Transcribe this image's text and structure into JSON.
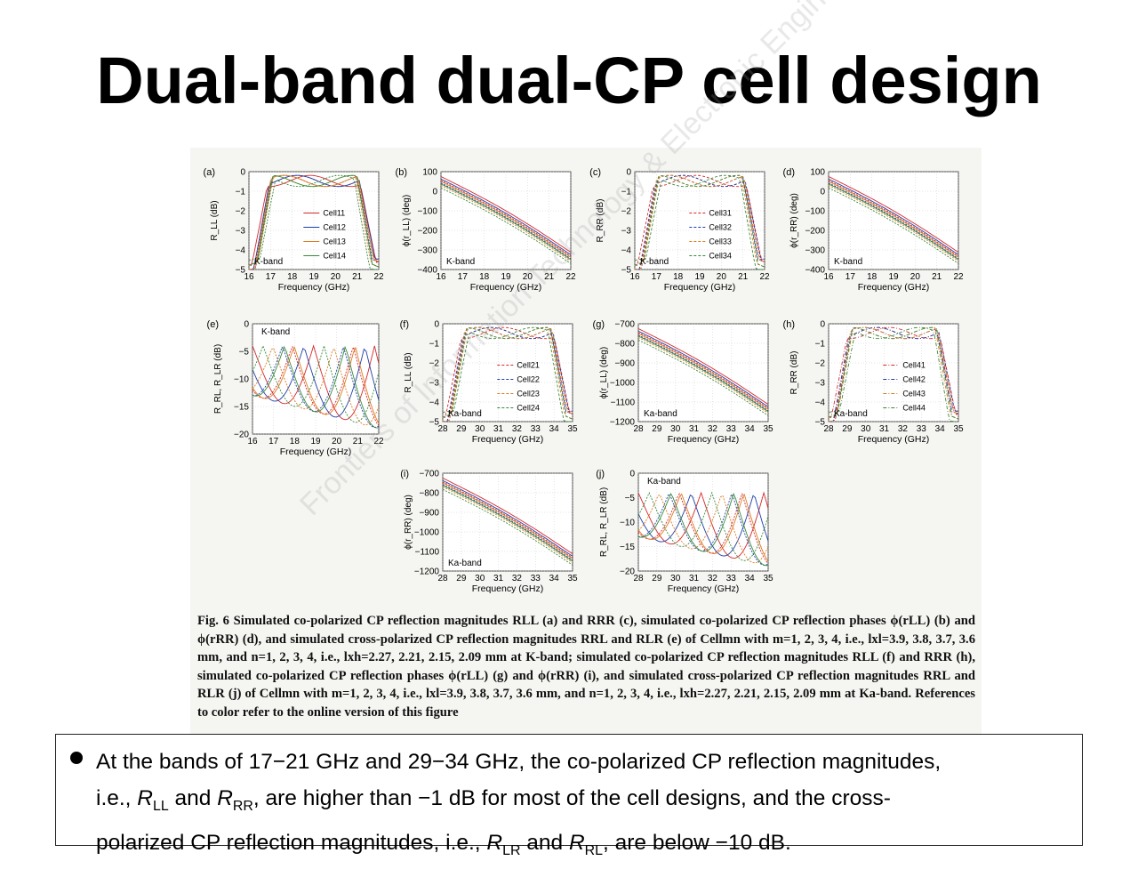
{
  "slide": {
    "title": "Dual-band dual-CP cell design"
  },
  "figure": {
    "watermark": "Frontiers of Information Technology & Electronic Engineering",
    "panels": [
      {
        "id": "a",
        "label": "(a)",
        "ylabel": "R_LL (dB)",
        "xlabel": "Frequency (GHz)",
        "band": "K-band",
        "xticks": [
          "16",
          "17",
          "18",
          "19",
          "20",
          "21",
          "22"
        ],
        "yticks": [
          "0",
          "−1",
          "−2",
          "−3",
          "−4",
          "−5"
        ],
        "legend": [
          "Cell11",
          "Cell12",
          "Cell13",
          "Cell14"
        ],
        "legend_style": "solid"
      },
      {
        "id": "b",
        "label": "(b)",
        "ylabel": "ϕ(r_LL) (deg)",
        "xlabel": "Frequency (GHz)",
        "band": "K-band",
        "xticks": [
          "16",
          "17",
          "18",
          "19",
          "20",
          "21",
          "22"
        ],
        "yticks": [
          "100",
          "0",
          "−100",
          "−200",
          "−300",
          "−400"
        ]
      },
      {
        "id": "c",
        "label": "(c)",
        "ylabel": "R_RR (dB)",
        "xlabel": "Frequency (GHz)",
        "band": "K-band",
        "xticks": [
          "16",
          "17",
          "18",
          "19",
          "20",
          "21",
          "22"
        ],
        "yticks": [
          "0",
          "−1",
          "−2",
          "−3",
          "−4",
          "−5"
        ],
        "legend": [
          "Cell31",
          "Cell32",
          "Cell33",
          "Cell34"
        ],
        "legend_style": "dashed"
      },
      {
        "id": "d",
        "label": "(d)",
        "ylabel": "ϕ(r_RR) (deg)",
        "xlabel": "Frequency (GHz)",
        "band": "K-band",
        "xticks": [
          "16",
          "17",
          "18",
          "19",
          "20",
          "21",
          "22"
        ],
        "yticks": [
          "100",
          "0",
          "−100",
          "−200",
          "−300",
          "−400"
        ]
      },
      {
        "id": "e",
        "label": "(e)",
        "ylabel": "R_RL, R_LR (dB)",
        "xlabel": "Frequency (GHz)",
        "band": "K-band",
        "xticks": [
          "16",
          "17",
          "18",
          "19",
          "20",
          "21",
          "22"
        ],
        "yticks": [
          "0",
          "−5",
          "−10",
          "−15",
          "−20"
        ]
      },
      {
        "id": "f",
        "label": "(f)",
        "ylabel": "R_LL (dB)",
        "xlabel": "Frequency (GHz)",
        "band": "Ka-band",
        "xticks": [
          "28",
          "29",
          "30",
          "31",
          "32",
          "33",
          "34",
          "35"
        ],
        "yticks": [
          "0",
          "−1",
          "−2",
          "−3",
          "−4",
          "−5"
        ],
        "legend": [
          "Cell21",
          "Cell22",
          "Cell23",
          "Cell24"
        ],
        "legend_style": "dashed"
      },
      {
        "id": "g",
        "label": "(g)",
        "ylabel": "ϕ(r_LL) (deg)",
        "xlabel": "Frequency (GHz)",
        "band": "Ka-band",
        "xticks": [
          "28",
          "29",
          "30",
          "31",
          "32",
          "33",
          "34",
          "35"
        ],
        "yticks": [
          "−700",
          "−800",
          "−900",
          "−1000",
          "−1100",
          "−1200"
        ]
      },
      {
        "id": "h",
        "label": "(h)",
        "ylabel": "R_RR (dB)",
        "xlabel": "Frequency (GHz)",
        "band": "Ka-band",
        "xticks": [
          "28",
          "29",
          "30",
          "31",
          "32",
          "33",
          "34",
          "35"
        ],
        "yticks": [
          "0",
          "−1",
          "−2",
          "−3",
          "−4",
          "−5"
        ],
        "legend": [
          "Cell41",
          "Cell42",
          "Cell43",
          "Cell44"
        ],
        "legend_style": "dashdot"
      },
      {
        "id": "i",
        "label": "(i)",
        "ylabel": "ϕ(r_RR) (deg)",
        "xlabel": "Frequency (GHz)",
        "band": "Ka-band",
        "xticks": [
          "28",
          "29",
          "30",
          "31",
          "32",
          "33",
          "34",
          "35"
        ],
        "yticks": [
          "−700",
          "−800",
          "−900",
          "−1000",
          "−1100",
          "−1200"
        ]
      },
      {
        "id": "j",
        "label": "(j)",
        "ylabel": "R_RL, R_LR (dB)",
        "xlabel": "Frequency (GHz)",
        "band": "Ka-band",
        "xticks": [
          "28",
          "29",
          "30",
          "31",
          "32",
          "33",
          "34",
          "35"
        ],
        "yticks": [
          "0",
          "−5",
          "−10",
          "−15",
          "−20"
        ]
      }
    ],
    "series_colors": [
      "#d6282b",
      "#1f3fa8",
      "#e07b1f",
      "#3a8a3a"
    ],
    "caption": "Fig. 6  Simulated co-polarized CP reflection magnitudes RLL (a) and RRR (c), simulated co-polarized CP reflection phases ϕ(rLL) (b) and ϕ(rRR) (d), and simulated cross-polarized CP reflection magnitudes RRL and RLR (e) of Cellmn with m=1, 2, 3, 4, i.e., lxl=3.9, 3.8, 3.7, 3.6 mm, and n=1, 2, 3, 4, i.e., lxh=2.27, 2.21, 2.15, 2.09 mm at K-band; simulated co-polarized CP reflection magnitudes RLL (f) and RRR (h), simulated co-polarized CP reflection phases ϕ(rLL) (g) and ϕ(rRR) (i), and simulated cross-polarized CP reflection magnitudes RRL and RLR (j) of Cellmn with m=1, 2, 3, 4, i.e., lxl=3.9, 3.8, 3.7, 3.6 mm, and n=1, 2, 3, 4, i.e., lxh=2.27, 2.21, 2.15, 2.09 mm at Ka-band. References to color refer to the online version of this figure"
  },
  "bullet": {
    "line1": "At the bands of 17−21 GHz and 29−34 GHz, the co-polarized CP reflection magnitudes,",
    "line2_a": "i.e., ",
    "r1": "R",
    "r1_sub": "LL",
    "line2_b": " and ",
    "r2": "R",
    "r2_sub": "RR",
    "line2_c": ", are higher than −1 dB for most of the cell designs, and the cross-",
    "line3_a": "polarized CP reflection magnitudes, i.e., ",
    "r3": "R",
    "r3_sub": "LR",
    "line3_b": " and ",
    "r4": "R",
    "r4_sub": "RL",
    "line3_c": ", are below −10 dB."
  }
}
